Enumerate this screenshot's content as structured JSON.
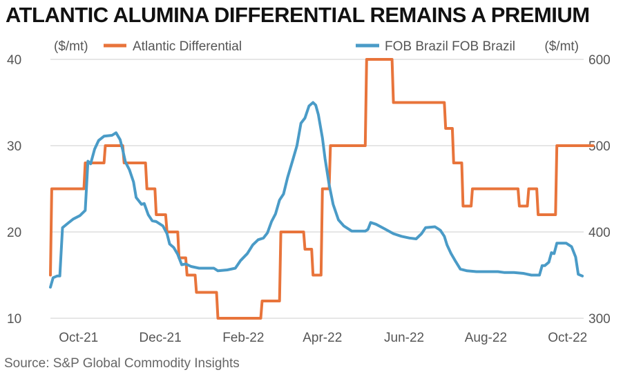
{
  "title": "ATLANTIC ALUMINA DIFFERENTIAL REMAINS A PREMIUM",
  "source": "Source: S&P Global Commodity Insights",
  "chart_data": {
    "type": "line",
    "title": "ATLANTIC ALUMINA DIFFERENTIAL REMAINS A PREMIUM",
    "left_unit": "($/mt)",
    "right_unit": "($/mt)",
    "legend_placement": "top",
    "grid": "horizontal",
    "x_ticks": [
      "Oct-21",
      "Dec-21",
      "Feb-22",
      "Apr-22",
      "Jun-22",
      "Aug-22",
      "Oct-22"
    ],
    "y_left": {
      "min": 10,
      "max": 40,
      "ticks": [
        "40",
        "30",
        "20",
        "10"
      ]
    },
    "y_right": {
      "min": 300,
      "max": 600,
      "ticks": [
        "600",
        "500",
        "400",
        "300"
      ]
    },
    "series": [
      {
        "name": "Atlantic Differential",
        "axis": "left",
        "color": "#e8743b",
        "points": [
          [
            "2021-09-10",
            15
          ],
          [
            "2021-09-11",
            25
          ],
          [
            "2021-10-05",
            25
          ],
          [
            "2021-10-06",
            28
          ],
          [
            "2021-10-20",
            28
          ],
          [
            "2021-10-21",
            30
          ],
          [
            "2021-11-03",
            30
          ],
          [
            "2021-11-04",
            28
          ],
          [
            "2021-11-20",
            28
          ],
          [
            "2021-11-21",
            25
          ],
          [
            "2021-11-27",
            25
          ],
          [
            "2021-11-28",
            22
          ],
          [
            "2021-12-05",
            22
          ],
          [
            "2021-12-06",
            20
          ],
          [
            "2021-12-14",
            20
          ],
          [
            "2021-12-15",
            17
          ],
          [
            "2021-12-20",
            17
          ],
          [
            "2021-12-21",
            15
          ],
          [
            "2021-12-27",
            15
          ],
          [
            "2021-12-28",
            13
          ],
          [
            "2022-01-12",
            13
          ],
          [
            "2022-01-13",
            10
          ],
          [
            "2022-02-14",
            10
          ],
          [
            "2022-02-15",
            12
          ],
          [
            "2022-02-28",
            12
          ],
          [
            "2022-03-01",
            20
          ],
          [
            "2022-03-18",
            20
          ],
          [
            "2022-03-19",
            18
          ],
          [
            "2022-03-24",
            18
          ],
          [
            "2022-03-25",
            15
          ],
          [
            "2022-03-31",
            15
          ],
          [
            "2022-04-01",
            25
          ],
          [
            "2022-04-06",
            25
          ],
          [
            "2022-04-07",
            30
          ],
          [
            "2022-05-03",
            30
          ],
          [
            "2022-05-04",
            40
          ],
          [
            "2022-05-23",
            40
          ],
          [
            "2022-05-24",
            35
          ],
          [
            "2022-07-01",
            35
          ],
          [
            "2022-07-02",
            32
          ],
          [
            "2022-07-07",
            32
          ],
          [
            "2022-07-08",
            28
          ],
          [
            "2022-07-14",
            28
          ],
          [
            "2022-07-15",
            23
          ],
          [
            "2022-07-21",
            23
          ],
          [
            "2022-07-22",
            25
          ],
          [
            "2022-08-25",
            25
          ],
          [
            "2022-08-26",
            23
          ],
          [
            "2022-09-01",
            23
          ],
          [
            "2022-09-02",
            25
          ],
          [
            "2022-09-08",
            25
          ],
          [
            "2022-09-09",
            22
          ],
          [
            "2022-09-22",
            22
          ],
          [
            "2022-09-23",
            30
          ],
          [
            "2022-10-20",
            30
          ]
        ]
      },
      {
        "name": "FOB Brazil FOB Brazil",
        "axis": "right",
        "color": "#4a9bc7",
        "points": [
          [
            "2021-09-10",
            336
          ],
          [
            "2021-09-12",
            347
          ],
          [
            "2021-09-15",
            349
          ],
          [
            "2021-09-17",
            349
          ],
          [
            "2021-09-19",
            405
          ],
          [
            "2021-09-23",
            410
          ],
          [
            "2021-09-27",
            415
          ],
          [
            "2021-10-02",
            419
          ],
          [
            "2021-10-06",
            425
          ],
          [
            "2021-10-08",
            482
          ],
          [
            "2021-10-10",
            479
          ],
          [
            "2021-10-13",
            496
          ],
          [
            "2021-10-16",
            506
          ],
          [
            "2021-10-20",
            511
          ],
          [
            "2021-10-26",
            512
          ],
          [
            "2021-10-29",
            515
          ],
          [
            "2021-11-01",
            507
          ],
          [
            "2021-11-03",
            495
          ],
          [
            "2021-11-05",
            481
          ],
          [
            "2021-11-08",
            472
          ],
          [
            "2021-11-11",
            458
          ],
          [
            "2021-11-13",
            440
          ],
          [
            "2021-11-17",
            432
          ],
          [
            "2021-11-19",
            433
          ],
          [
            "2021-11-22",
            420
          ],
          [
            "2021-11-25",
            413
          ],
          [
            "2021-11-28",
            412
          ],
          [
            "2021-12-03",
            407
          ],
          [
            "2021-12-06",
            398
          ],
          [
            "2021-12-08",
            386
          ],
          [
            "2021-12-11",
            382
          ],
          [
            "2021-12-14",
            374
          ],
          [
            "2021-12-17",
            362
          ],
          [
            "2021-12-20",
            363
          ],
          [
            "2021-12-24",
            360
          ],
          [
            "2021-12-30",
            358
          ],
          [
            "2022-01-10",
            358
          ],
          [
            "2022-01-13",
            355
          ],
          [
            "2022-01-20",
            356
          ],
          [
            "2022-01-26",
            358
          ],
          [
            "2022-01-30",
            367
          ],
          [
            "2022-02-04",
            375
          ],
          [
            "2022-02-08",
            385
          ],
          [
            "2022-02-12",
            391
          ],
          [
            "2022-02-16",
            393
          ],
          [
            "2022-02-19",
            399
          ],
          [
            "2022-02-22",
            412
          ],
          [
            "2022-02-25",
            421
          ],
          [
            "2022-02-28",
            437
          ],
          [
            "2022-03-03",
            444
          ],
          [
            "2022-03-06",
            463
          ],
          [
            "2022-03-10",
            484
          ],
          [
            "2022-03-13",
            500
          ],
          [
            "2022-03-16",
            526
          ],
          [
            "2022-03-19",
            532
          ],
          [
            "2022-03-22",
            546
          ],
          [
            "2022-03-25",
            550
          ],
          [
            "2022-03-27",
            547
          ],
          [
            "2022-03-29",
            536
          ],
          [
            "2022-04-01",
            509
          ],
          [
            "2022-04-03",
            485
          ],
          [
            "2022-04-06",
            455
          ],
          [
            "2022-04-09",
            432
          ],
          [
            "2022-04-13",
            414
          ],
          [
            "2022-04-17",
            407
          ],
          [
            "2022-04-23",
            401
          ],
          [
            "2022-05-03",
            401
          ],
          [
            "2022-05-05",
            403
          ],
          [
            "2022-05-07",
            411
          ],
          [
            "2022-05-11",
            409
          ],
          [
            "2022-05-17",
            404
          ],
          [
            "2022-05-24",
            398
          ],
          [
            "2022-05-30",
            395
          ],
          [
            "2022-06-05",
            393
          ],
          [
            "2022-06-10",
            392
          ],
          [
            "2022-06-14",
            398
          ],
          [
            "2022-06-17",
            405
          ],
          [
            "2022-06-24",
            406
          ],
          [
            "2022-06-28",
            402
          ],
          [
            "2022-07-01",
            395
          ],
          [
            "2022-07-03",
            385
          ],
          [
            "2022-07-06",
            375
          ],
          [
            "2022-07-09",
            367
          ],
          [
            "2022-07-13",
            357
          ],
          [
            "2022-07-18",
            355
          ],
          [
            "2022-07-25",
            354
          ],
          [
            "2022-08-10",
            354
          ],
          [
            "2022-08-15",
            353
          ],
          [
            "2022-08-22",
            353
          ],
          [
            "2022-08-29",
            352
          ],
          [
            "2022-09-04",
            350
          ],
          [
            "2022-09-10",
            350
          ],
          [
            "2022-09-12",
            361
          ],
          [
            "2022-09-14",
            361
          ],
          [
            "2022-09-17",
            365
          ],
          [
            "2022-09-19",
            376
          ],
          [
            "2022-09-21",
            375
          ],
          [
            "2022-09-23",
            387
          ],
          [
            "2022-09-30",
            387
          ],
          [
            "2022-10-04",
            383
          ],
          [
            "2022-10-07",
            371
          ],
          [
            "2022-10-09",
            351
          ],
          [
            "2022-10-12",
            349
          ]
        ]
      }
    ]
  }
}
